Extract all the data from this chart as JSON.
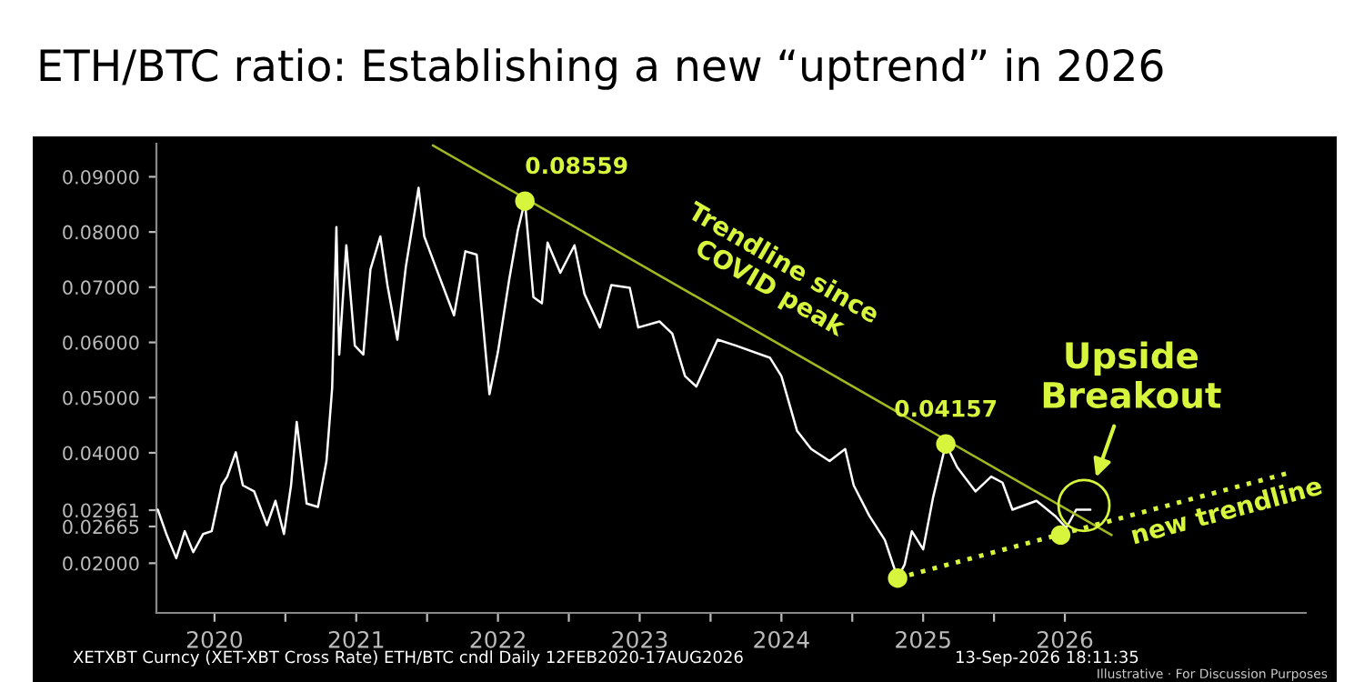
{
  "chart_data": {
    "type": "line",
    "title": "ETH/BTC ratio: Establishing a new “uptrend” in 2026",
    "series": [
      {
        "color": "#ffffff",
        "line_style": "solid",
        "x": [
          2020.1,
          2020.16,
          2020.23,
          2020.29,
          2020.35,
          2020.42,
          2020.48,
          2020.55,
          2020.59,
          2020.65,
          2020.7,
          2020.78,
          2020.87,
          2020.93,
          2020.99,
          2021.04,
          2021.08,
          2021.15,
          2021.23,
          2021.29,
          2021.33,
          2021.36,
          2021.38,
          2021.43,
          2021.49,
          2021.55,
          2021.6,
          2021.67,
          2021.72,
          2021.79,
          2021.85,
          2021.94,
          2021.98,
          2022.06,
          2022.19,
          2022.27,
          2022.35,
          2022.44,
          2022.5,
          2022.58,
          2022.64,
          2022.69,
          2022.75,
          2022.81,
          2022.85,
          2022.94,
          2023.04,
          2023.11,
          2023.22,
          2023.3,
          2023.43,
          2023.49,
          2023.64,
          2023.73,
          2023.82,
          2023.9,
          2024.05,
          2024.18,
          2024.42,
          2024.5,
          2024.61,
          2024.71,
          2024.84,
          2024.95,
          2025.01,
          2025.12,
          2025.23,
          2025.32,
          2025.37,
          2025.42,
          2025.5,
          2025.57,
          2025.66,
          2025.74,
          2025.87,
          2025.98,
          2026.06,
          2026.13,
          2026.3,
          2026.43,
          2026.51,
          2026.58,
          2026.68
        ],
        "values": [
          0.0297,
          0.0253,
          0.0209,
          0.0258,
          0.022,
          0.0253,
          0.0258,
          0.0341,
          0.0357,
          0.0401,
          0.0341,
          0.033,
          0.0269,
          0.0313,
          0.0253,
          0.0341,
          0.0456,
          0.0308,
          0.0302,
          0.0385,
          0.0517,
          0.0809,
          0.0578,
          0.0776,
          0.0594,
          0.0578,
          0.0732,
          0.0792,
          0.0704,
          0.0605,
          0.0737,
          0.088,
          0.0792,
          0.0737,
          0.0649,
          0.0765,
          0.0759,
          0.0506,
          0.0583,
          0.0715,
          0.0803,
          0.0856,
          0.0682,
          0.0671,
          0.0781,
          0.0726,
          0.0776,
          0.0688,
          0.0627,
          0.0704,
          0.0699,
          0.0627,
          0.0638,
          0.0616,
          0.0539,
          0.052,
          0.0605,
          0.0594,
          0.0572,
          0.0539,
          0.044,
          0.0407,
          0.0385,
          0.0407,
          0.0341,
          0.0286,
          0.0242,
          0.0173,
          0.0198,
          0.0258,
          0.0225,
          0.0319,
          0.0416,
          0.0374,
          0.033,
          0.0357,
          0.0346,
          0.0297,
          0.0313,
          0.0286,
          0.0264,
          0.0297,
          0.0297
        ]
      },
      {
        "color": "#a3b81f",
        "line_style": "solid",
        "x": [
          2022.04,
          2026.83
        ],
        "values": [
          0.0957,
          0.0251
        ]
      },
      {
        "color": "#d7f53c",
        "line_style": "dotted",
        "x": [
          2025.32,
          2028.1
        ],
        "values": [
          0.0173,
          0.0365
        ]
      },
      {
        "type": "scatter",
        "color": "#d7f53c",
        "marker": "circle",
        "x": [
          2022.69,
          2025.66,
          2025.32,
          2026.47
        ],
        "values": [
          0.0856,
          0.0416,
          0.0173,
          0.0251
        ]
      }
    ],
    "xlim": [
      2020.09,
      2028.2
    ],
    "xticks": [
      {
        "value": 2020.5,
        "label": "2020"
      },
      {
        "value": 2021,
        "label": null
      },
      {
        "value": 2021.5,
        "label": "2021"
      },
      {
        "value": 2022,
        "label": null
      },
      {
        "value": 2022.5,
        "label": "2022"
      },
      {
        "value": 2023,
        "label": null
      },
      {
        "value": 2023.5,
        "label": "2023"
      },
      {
        "value": 2024,
        "label": null
      },
      {
        "value": 2024.5,
        "label": "2024"
      },
      {
        "value": 2025,
        "label": null
      },
      {
        "value": 2025.5,
        "label": "2025"
      },
      {
        "value": 2026,
        "label": null
      },
      {
        "value": 2026.5,
        "label": "2026"
      }
    ],
    "ylim": [
      0.011,
      0.096
    ],
    "yticks": [
      {
        "value": 0.02,
        "label": "0.02000"
      },
      0.02665,
      0.02961,
      {
        "value": 0.04,
        "label": "0.04000"
      },
      {
        "value": 0.05,
        "label": "0.05000"
      },
      {
        "value": 0.06,
        "label": "0.06000"
      },
      {
        "value": 0.07,
        "label": "0.07000"
      },
      {
        "value": 0.08,
        "label": "0.08000"
      },
      {
        "value": 0.09,
        "label": "0.09000"
      }
    ],
    "annotations": [
      {
        "text": "0.08559",
        "x": 2022.69,
        "y": 0.08559
      },
      {
        "text": "0.04157",
        "x": 2025.66,
        "y": 0.04157
      },
      {
        "text": "Trendline since\nCOVID peak",
        "x": 2024.37,
        "y": 0.0614
      },
      {
        "text": "new trendline",
        "x": 2027.62,
        "y": 0.0332
      },
      "Upside\nBreakout",
      "XETXBT Curncy (XET-XBT Cross Rate) ETH/BTC cndl Daily 12FEB2020-17AUG2026",
      "13-Sep-2026 18:11:35",
      "Illustrative · For Discussion Purposes"
    ],
    "grid": false
  }
}
